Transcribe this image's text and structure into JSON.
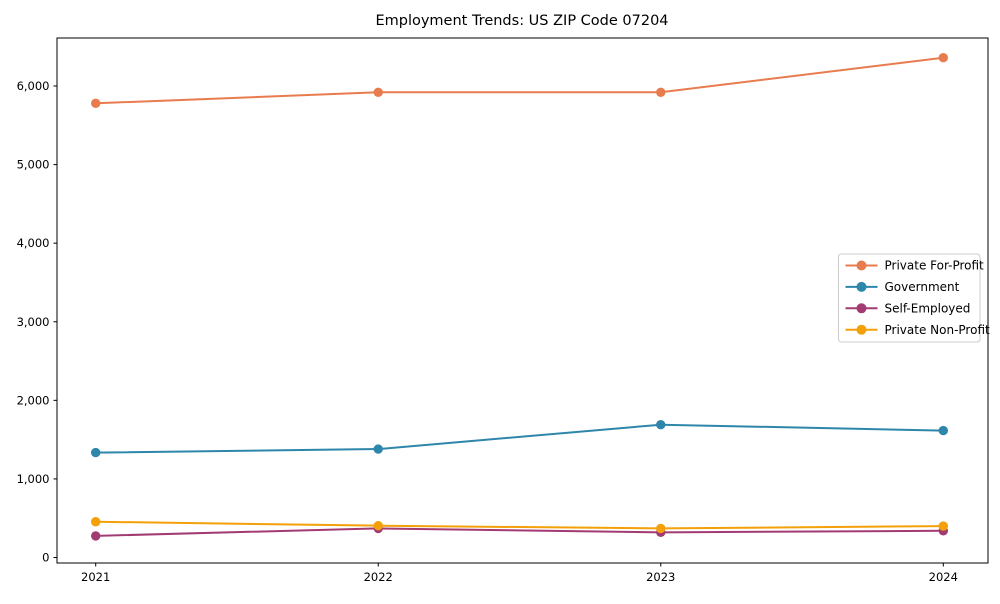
{
  "chart_data": {
    "type": "line",
    "title": "Employment Trends: US ZIP Code 07204",
    "xlabel": "",
    "ylabel": "",
    "x": [
      "2021",
      "2022",
      "2023",
      "2024"
    ],
    "series": [
      {
        "name": "Private For-Profit",
        "color": "#E87C4E",
        "values": [
          5780,
          5920,
          5920,
          6360
        ]
      },
      {
        "name": "Government",
        "color": "#2E86AB",
        "values": [
          1335,
          1380,
          1690,
          1615
        ]
      },
      {
        "name": "Self-Employed",
        "color": "#A23B72",
        "values": [
          275,
          370,
          320,
          340
        ]
      },
      {
        "name": "Private Non-Profit",
        "color": "#F3A009",
        "values": [
          455,
          405,
          370,
          400
        ]
      }
    ],
    "yticks": {
      "values": [
        0,
        1000,
        2000,
        3000,
        4000,
        5000,
        6000
      ],
      "labels": [
        "0",
        "1,000",
        "2,000",
        "3,000",
        "4,000",
        "5,000",
        "6,000"
      ]
    },
    "ylim": [
      -70,
      6611
    ],
    "grid": false,
    "legend_position": "center-right",
    "legend_border_color": "#cccccc",
    "axis_color": "#000000",
    "background": "#ffffff",
    "marker": "circle"
  }
}
